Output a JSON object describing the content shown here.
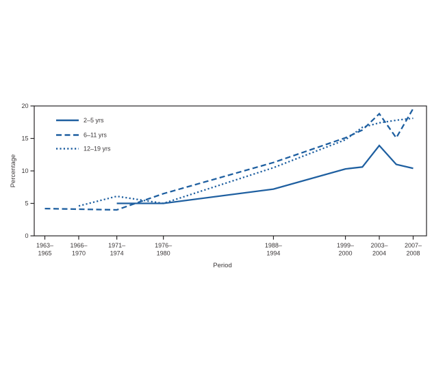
{
  "figure": {
    "background": "#ffffff",
    "line_color": "#1e5fa0",
    "axis_color": "#262324",
    "text_color": "#3a3637"
  },
  "chart_data": {
    "type": "line",
    "title": "",
    "xlabel": "Period",
    "ylabel": "Percentage",
    "ylim": [
      0,
      20
    ],
    "yticks": [
      "0",
      "5",
      "10",
      "15",
      "20"
    ],
    "grid": false,
    "legend_position": "top-left-inside",
    "x_range_years": [
      1964,
      2007.5
    ],
    "x_tick_labels": [
      {
        "line1": "1963–",
        "line2": "1965",
        "year": 1964
      },
      {
        "line1": "1966–",
        "line2": "1970",
        "year": 1968
      },
      {
        "line1": "1971–",
        "line2": "1974",
        "year": 1972.5
      },
      {
        "line1": "1976–",
        "line2": "1980",
        "year": 1978
      },
      {
        "line1": "1988–",
        "line2": "1994",
        "year": 1991
      },
      {
        "line1": "1999–",
        "line2": "2000",
        "year": 1999.5
      },
      {
        "line1": "2003–",
        "line2": "2004",
        "year": 2003.5
      },
      {
        "line1": "2007–",
        "line2": "2008",
        "year": 2007.5
      }
    ],
    "series": [
      {
        "name": "2–5 yrs",
        "line_style": "solid",
        "points": [
          {
            "period": "1971–1974",
            "year": 1972.5,
            "value": 5.0
          },
          {
            "period": "1976–1980",
            "year": 1978,
            "value": 5.0
          },
          {
            "period": "1988–1994",
            "year": 1991,
            "value": 7.2
          },
          {
            "period": "1999–2000",
            "year": 1999.5,
            "value": 10.3
          },
          {
            "period": "2001–2002",
            "year": 2001.5,
            "value": 10.6
          },
          {
            "period": "2003–2004",
            "year": 2003.5,
            "value": 13.9
          },
          {
            "period": "2005–2006",
            "year": 2005.5,
            "value": 11.0
          },
          {
            "period": "2007–2008",
            "year": 2007.5,
            "value": 10.4
          }
        ]
      },
      {
        "name": "6–11 yrs",
        "line_style": "dashed",
        "points": [
          {
            "period": "1963–1965",
            "year": 1964,
            "value": 4.2
          },
          {
            "period": "1971–1974",
            "year": 1972.5,
            "value": 4.0
          },
          {
            "period": "1976–1980",
            "year": 1978,
            "value": 6.5
          },
          {
            "period": "1988–1994",
            "year": 1991,
            "value": 11.3
          },
          {
            "period": "1999–2000",
            "year": 1999.5,
            "value": 15.1
          },
          {
            "period": "2001–2002",
            "year": 2001.5,
            "value": 16.3
          },
          {
            "period": "2003–2004",
            "year": 2003.5,
            "value": 18.8
          },
          {
            "period": "2005–2006",
            "year": 2005.5,
            "value": 15.1
          },
          {
            "period": "2007–2008",
            "year": 2007.5,
            "value": 19.6
          }
        ]
      },
      {
        "name": "12–19 yrs",
        "line_style": "dotted",
        "points": [
          {
            "period": "1966–1970",
            "year": 1968,
            "value": 4.6
          },
          {
            "period": "1971–1974",
            "year": 1972.5,
            "value": 6.1
          },
          {
            "period": "1976–1980",
            "year": 1978,
            "value": 5.0
          },
          {
            "period": "1988–1994",
            "year": 1991,
            "value": 10.5
          },
          {
            "period": "1999–2000",
            "year": 1999.5,
            "value": 14.8
          },
          {
            "period": "2001–2002",
            "year": 2001.5,
            "value": 16.7
          },
          {
            "period": "2003–2004",
            "year": 2003.5,
            "value": 17.4
          },
          {
            "period": "2005–2006",
            "year": 2005.5,
            "value": 17.8
          },
          {
            "period": "2007–2008",
            "year": 2007.5,
            "value": 18.1
          }
        ]
      }
    ]
  }
}
